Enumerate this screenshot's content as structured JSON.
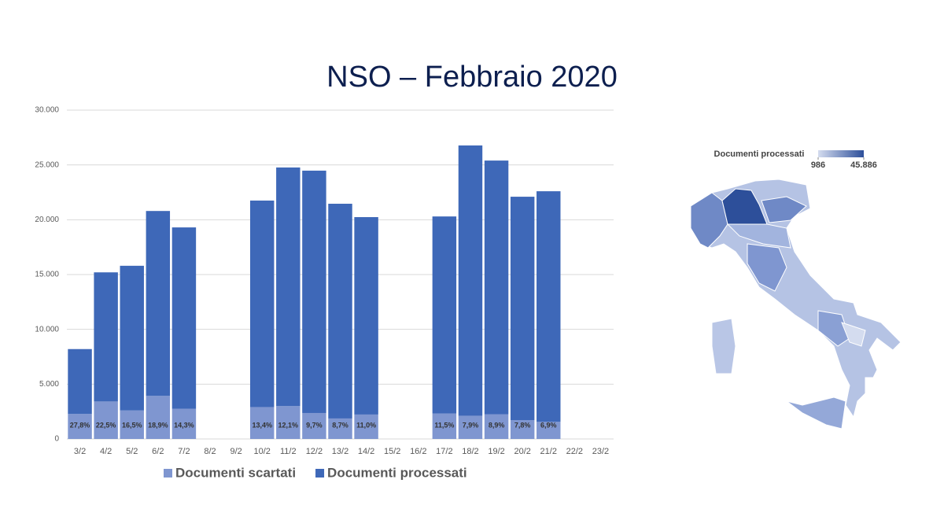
{
  "title": "NSO – Febbraio 2020",
  "chart_data": [
    {
      "type": "bar",
      "stacked": true,
      "categories": [
        "3/2",
        "4/2",
        "5/2",
        "6/2",
        "7/2",
        "8/2",
        "9/2",
        "10/2",
        "11/2",
        "12/2",
        "13/2",
        "14/2",
        "15/2",
        "16/2",
        "17/2",
        "18/2",
        "19/2",
        "20/2",
        "21/2",
        "22/2",
        "23/2"
      ],
      "series": [
        {
          "name": "Documenti scartati",
          "color": "#7f96d0",
          "values": [
            2280,
            3420,
            2600,
            3930,
            2760,
            null,
            null,
            2910,
            3000,
            2370,
            1870,
            2230,
            null,
            null,
            2330,
            2120,
            2260,
            1720,
            1560,
            null,
            null
          ],
          "percentage_labels": [
            "27,8%",
            "22,5%",
            "16,5%",
            "18,9%",
            "14,3%",
            null,
            null,
            "13,4%",
            "12,1%",
            "9,7%",
            "8,7%",
            "11,0%",
            null,
            null,
            "11,5%",
            "7,9%",
            "8,9%",
            "7,8%",
            "6,9%",
            null,
            null
          ]
        },
        {
          "name": "Documenti processati",
          "color": "#3e68b8",
          "values": [
            5920,
            11780,
            13200,
            16870,
            16540,
            null,
            null,
            18840,
            21770,
            22110,
            19590,
            18010,
            null,
            null,
            17970,
            24660,
            23140,
            20380,
            21040,
            null,
            null
          ]
        }
      ],
      "ylim": [
        0,
        30000
      ],
      "yticks": [
        0,
        {
          "value": 5000,
          "label": "5.000"
        },
        {
          "value": 10000,
          "label": "10.000"
        },
        {
          "value": 15000,
          "label": "15.000"
        },
        {
          "value": 20000,
          "label": "20.000"
        },
        {
          "value": 25000,
          "label": "25.000"
        },
        {
          "value": 30000,
          "label": "30.000"
        }
      ],
      "grid": true,
      "legend": "bottom"
    },
    {
      "type": "map",
      "colorbar_title": "Documenti processati",
      "colorlim": [
        986,
        45886
      ],
      "colors": [
        "#d4dcef",
        "#2d4f9a"
      ],
      "colorbar_ticks": [
        986,
        {
          "value": 45886,
          "label": "45.886"
        }
      ]
    }
  ]
}
